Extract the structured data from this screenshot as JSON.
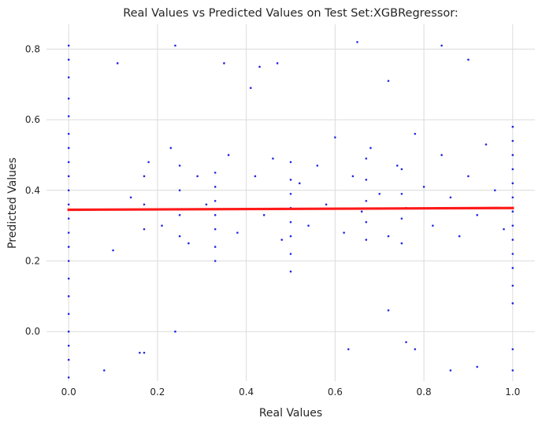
{
  "chart_data": {
    "type": "scatter",
    "title": "Real Values vs Predicted Values on Test Set:XGBRegressor:",
    "xlabel": "Real Values",
    "ylabel": "Predicted Values",
    "xlim": [
      -0.05,
      1.05
    ],
    "ylim": [
      -0.14,
      0.87
    ],
    "xticks": [
      0.0,
      0.2,
      0.4,
      0.6,
      0.8,
      1.0
    ],
    "yticks": [
      0.0,
      0.2,
      0.4,
      0.6,
      0.8
    ],
    "xtick_labels": [
      "0.0",
      "0.2",
      "0.4",
      "0.6",
      "0.8",
      "1.0"
    ],
    "ytick_labels": [
      "0.0",
      "0.2",
      "0.4",
      "0.6",
      "0.8"
    ],
    "grid": true,
    "legend": "none",
    "point_color": "#0000dd",
    "fit_line_color": "#ff1a1a",
    "background_color": "#ffffff",
    "grid_color": "#dcdcdc",
    "fit_line": {
      "x": [
        0.0,
        1.0
      ],
      "y": [
        0.345,
        0.35
      ]
    },
    "series": [
      {
        "values": [
          [
            0.0,
            0.81
          ],
          [
            0.0,
            0.77
          ],
          [
            0.0,
            0.72
          ],
          [
            0.0,
            0.66
          ],
          [
            0.0,
            0.61
          ],
          [
            0.0,
            0.56
          ],
          [
            0.0,
            0.52
          ],
          [
            0.0,
            0.48
          ],
          [
            0.0,
            0.44
          ],
          [
            0.0,
            0.4
          ],
          [
            0.0,
            0.36
          ],
          [
            0.0,
            0.32
          ],
          [
            0.0,
            0.28
          ],
          [
            0.0,
            0.24
          ],
          [
            0.0,
            0.2
          ],
          [
            0.0,
            0.15
          ],
          [
            0.0,
            0.1
          ],
          [
            0.0,
            0.05
          ],
          [
            0.0,
            0.0
          ],
          [
            0.0,
            -0.04
          ],
          [
            0.0,
            -0.08
          ],
          [
            0.0,
            -0.13
          ],
          [
            1.0,
            0.58
          ],
          [
            1.0,
            0.54
          ],
          [
            1.0,
            0.5
          ],
          [
            1.0,
            0.46
          ],
          [
            1.0,
            0.42
          ],
          [
            1.0,
            0.38
          ],
          [
            1.0,
            0.34
          ],
          [
            1.0,
            0.3
          ],
          [
            1.0,
            0.26
          ],
          [
            1.0,
            0.22
          ],
          [
            1.0,
            0.18
          ],
          [
            1.0,
            0.13
          ],
          [
            1.0,
            0.08
          ],
          [
            1.0,
            -0.05
          ],
          [
            1.0,
            -0.11
          ],
          [
            0.5,
            0.48
          ],
          [
            0.5,
            0.43
          ],
          [
            0.5,
            0.39
          ],
          [
            0.5,
            0.35
          ],
          [
            0.5,
            0.31
          ],
          [
            0.5,
            0.27
          ],
          [
            0.5,
            0.22
          ],
          [
            0.5,
            0.17
          ],
          [
            0.33,
            0.45
          ],
          [
            0.33,
            0.41
          ],
          [
            0.33,
            0.37
          ],
          [
            0.33,
            0.33
          ],
          [
            0.33,
            0.29
          ],
          [
            0.33,
            0.24
          ],
          [
            0.33,
            0.2
          ],
          [
            0.25,
            0.47
          ],
          [
            0.25,
            0.4
          ],
          [
            0.25,
            0.33
          ],
          [
            0.25,
            0.27
          ],
          [
            0.17,
            0.44
          ],
          [
            0.17,
            0.36
          ],
          [
            0.17,
            0.29
          ],
          [
            0.67,
            0.49
          ],
          [
            0.67,
            0.43
          ],
          [
            0.67,
            0.37
          ],
          [
            0.67,
            0.31
          ],
          [
            0.67,
            0.26
          ],
          [
            0.75,
            0.46
          ],
          [
            0.75,
            0.39
          ],
          [
            0.75,
            0.32
          ],
          [
            0.75,
            0.25
          ],
          [
            0.11,
            0.76
          ],
          [
            0.16,
            -0.06
          ],
          [
            0.17,
            -0.06
          ],
          [
            0.24,
            0.81
          ],
          [
            0.24,
            0.0
          ],
          [
            0.35,
            0.76
          ],
          [
            0.41,
            0.69
          ],
          [
            0.43,
            0.75
          ],
          [
            0.47,
            0.76
          ],
          [
            0.65,
            0.82
          ],
          [
            0.72,
            0.71
          ],
          [
            0.78,
            -0.05
          ],
          [
            0.84,
            0.81
          ],
          [
            0.9,
            0.77
          ],
          [
            0.92,
            -0.1
          ],
          [
            0.08,
            -0.11
          ],
          [
            0.76,
            -0.03
          ],
          [
            0.63,
            -0.05
          ],
          [
            0.86,
            -0.11
          ],
          [
            0.72,
            0.06
          ],
          [
            0.1,
            0.23
          ],
          [
            0.14,
            0.38
          ],
          [
            0.18,
            0.48
          ],
          [
            0.21,
            0.3
          ],
          [
            0.23,
            0.52
          ],
          [
            0.27,
            0.25
          ],
          [
            0.29,
            0.44
          ],
          [
            0.31,
            0.36
          ],
          [
            0.36,
            0.5
          ],
          [
            0.38,
            0.28
          ],
          [
            0.42,
            0.44
          ],
          [
            0.44,
            0.33
          ],
          [
            0.46,
            0.49
          ],
          [
            0.48,
            0.26
          ],
          [
            0.52,
            0.42
          ],
          [
            0.54,
            0.3
          ],
          [
            0.56,
            0.47
          ],
          [
            0.58,
            0.36
          ],
          [
            0.6,
            0.55
          ],
          [
            0.62,
            0.28
          ],
          [
            0.64,
            0.44
          ],
          [
            0.66,
            0.34
          ],
          [
            0.68,
            0.52
          ],
          [
            0.7,
            0.39
          ],
          [
            0.72,
            0.27
          ],
          [
            0.74,
            0.47
          ],
          [
            0.76,
            0.35
          ],
          [
            0.78,
            0.56
          ],
          [
            0.8,
            0.41
          ],
          [
            0.82,
            0.3
          ],
          [
            0.84,
            0.5
          ],
          [
            0.86,
            0.38
          ],
          [
            0.88,
            0.27
          ],
          [
            0.9,
            0.44
          ],
          [
            0.92,
            0.33
          ],
          [
            0.94,
            0.53
          ],
          [
            0.96,
            0.4
          ],
          [
            0.98,
            0.29
          ]
        ]
      }
    ]
  }
}
